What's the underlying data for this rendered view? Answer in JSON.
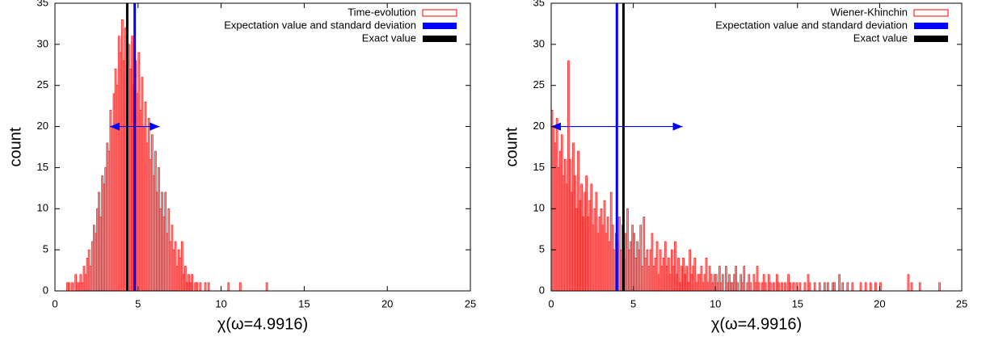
{
  "chart_data": [
    {
      "type": "histogram",
      "xlabel": "χ(ω=4.9916)",
      "ylabel": "count",
      "xlim": [
        0,
        25
      ],
      "ylim": [
        0,
        35
      ],
      "xticks": [
        0,
        5,
        10,
        15,
        20,
        25
      ],
      "yticks": [
        0,
        5,
        10,
        15,
        20,
        25,
        30,
        35
      ],
      "legend": "upper right",
      "series": [
        {
          "name": "Time-evolution",
          "color": "#ff0000",
          "bins": [
            0.5,
            0.6,
            0.7,
            0.8,
            0.9,
            1.0,
            1.1,
            1.2,
            1.3,
            1.4,
            1.5,
            1.6,
            1.7,
            1.8,
            1.9,
            2.0,
            2.1,
            2.2,
            2.3,
            2.4,
            2.5,
            2.6,
            2.7,
            2.8,
            2.9,
            3.0,
            3.1,
            3.2,
            3.3,
            3.4,
            3.5,
            3.6,
            3.7,
            3.8,
            3.9,
            4.0,
            4.1,
            4.2,
            4.3,
            4.4,
            4.5,
            4.6,
            4.7,
            4.8,
            4.9,
            5.0,
            5.1,
            5.2,
            5.3,
            5.4,
            5.5,
            5.6,
            5.7,
            5.8,
            5.9,
            6.0,
            6.1,
            6.2,
            6.3,
            6.4,
            6.5,
            6.6,
            6.7,
            6.8,
            6.9,
            7.0,
            7.1,
            7.2,
            7.3,
            7.4,
            7.5,
            7.6,
            7.7,
            7.8,
            7.9,
            8.0,
            8.1,
            8.2,
            8.3,
            8.4,
            8.5,
            8.6,
            8.7,
            8.8,
            8.9,
            9.0,
            9.1,
            9.2,
            9.3,
            9.4,
            9.5,
            9.6,
            9.7,
            9.8,
            9.9,
            10.0,
            10.1,
            10.2,
            10.3,
            10.4,
            10.5,
            10.6,
            10.7,
            10.8,
            10.9,
            11.0,
            11.1,
            11.2,
            11.3,
            11.4,
            11.5,
            11.6,
            11.7,
            11.8,
            11.9,
            12.0,
            12.1,
            12.2,
            12.3,
            12.4,
            12.5,
            12.6,
            12.7,
            12.8,
            12.9,
            13.0
          ],
          "values": [
            0,
            0,
            1,
            1,
            0,
            1,
            0,
            2,
            1,
            1,
            2,
            1,
            3,
            2,
            4,
            5,
            3,
            6,
            8,
            7,
            10,
            12,
            9,
            14,
            13,
            15,
            18,
            17,
            22,
            20,
            24,
            27,
            25,
            31,
            29,
            33,
            28,
            32,
            26,
            30,
            27,
            31,
            25,
            28,
            24,
            29,
            22,
            26,
            20,
            23,
            18,
            21,
            16,
            19,
            14,
            17,
            12,
            15,
            10,
            12,
            9,
            12,
            7,
            10,
            6,
            8,
            5,
            6,
            3,
            5,
            4,
            6,
            2,
            3,
            1,
            2,
            1,
            2,
            0,
            1,
            1,
            0,
            1,
            0,
            0,
            1,
            0,
            1,
            0,
            0,
            0,
            0,
            0,
            0,
            0,
            0,
            0,
            0,
            0,
            1,
            0,
            0,
            0,
            0,
            0,
            0,
            1,
            0,
            0,
            0,
            0,
            0,
            0,
            0,
            0,
            0,
            0,
            0,
            0,
            0,
            0,
            0,
            1,
            0,
            0
          ]
        }
      ],
      "expectation": {
        "name": "Expectation value and standard deviation",
        "color": "#0000ff",
        "value": 4.8,
        "std": 1.5,
        "arrow_at": 20
      },
      "exact": {
        "name": "Exact value",
        "color": "#000000",
        "value": 4.35
      }
    },
    {
      "type": "histogram",
      "xlabel": "χ(ω=4.9916)",
      "ylabel": "count",
      "xlim": [
        0,
        25
      ],
      "ylim": [
        0,
        35
      ],
      "xticks": [
        0,
        5,
        10,
        15,
        20,
        25
      ],
      "yticks": [
        0,
        5,
        10,
        15,
        20,
        25,
        30,
        35
      ],
      "legend": "upper right",
      "series": [
        {
          "name": "Wiener-Khinchin",
          "color": "#ff0000",
          "bins": [
            0,
            0.1,
            0.2,
            0.3,
            0.4,
            0.5,
            0.6,
            0.7,
            0.8,
            0.9,
            1,
            1.1,
            1.2,
            1.3,
            1.4,
            1.5,
            1.6,
            1.7,
            1.8,
            1.9,
            2,
            2.1,
            2.2,
            2.3,
            2.4,
            2.5,
            2.6,
            2.7,
            2.8,
            2.9,
            3,
            3.1,
            3.2,
            3.3,
            3.4,
            3.5,
            3.6,
            3.7,
            3.8,
            3.9,
            4,
            4.1,
            4.2,
            4.3,
            4.4,
            4.5,
            4.6,
            4.7,
            4.8,
            4.9,
            5,
            5.1,
            5.2,
            5.3,
            5.4,
            5.5,
            5.6,
            5.7,
            5.8,
            5.9,
            6,
            6.1,
            6.2,
            6.3,
            6.4,
            6.5,
            6.6,
            6.7,
            6.8,
            6.9,
            7,
            7.1,
            7.2,
            7.3,
            7.4,
            7.5,
            7.6,
            7.7,
            7.8,
            7.9,
            8,
            8.1,
            8.2,
            8.3,
            8.4,
            8.5,
            8.6,
            8.7,
            8.8,
            8.9,
            9,
            9.1,
            9.2,
            9.3,
            9.4,
            9.5,
            9.6,
            9.7,
            9.8,
            9.9,
            10,
            10.1,
            10.2,
            10.3,
            10.4,
            10.5,
            10.6,
            10.7,
            10.8,
            10.9,
            11,
            11.1,
            11.2,
            11.3,
            11.4,
            11.5,
            11.6,
            11.7,
            11.8,
            11.9,
            12,
            12.1,
            12.2,
            12.3,
            12.4,
            12.5,
            12.6,
            12.7,
            12.8,
            12.9,
            13,
            13.1,
            13.2,
            13.3,
            13.4,
            13.5,
            13.6,
            13.7,
            13.8,
            13.9,
            14,
            14.1,
            14.2,
            14.3,
            14.4,
            14.5,
            14.6,
            14.7,
            14.8,
            14.9,
            15,
            15.1,
            15.2,
            15.3,
            15.4,
            15.5,
            15.6,
            15.7,
            15.8,
            15.9,
            16,
            16.1,
            16.2,
            16.3,
            16.4,
            16.5,
            16.6,
            16.7,
            16.8,
            16.9,
            17,
            17.1,
            17.2,
            17.3,
            17.4,
            17.5,
            17.6,
            17.7,
            17.8,
            17.9,
            18,
            18.1,
            18.2,
            18.3,
            18.4,
            18.5,
            18.6,
            18.7,
            18.8,
            18.9,
            19,
            19.1,
            19.2,
            19.3,
            19.4,
            19.5,
            19.6,
            19.7,
            19.8,
            19.9,
            20,
            20.1,
            20.2,
            20.3,
            20.4,
            20.5,
            20.6,
            20.7,
            20.8,
            20.9,
            21,
            21.1,
            21.2,
            21.3,
            21.4,
            21.5,
            21.6,
            21.7,
            21.8,
            21.9,
            22,
            22.1,
            22.2,
            22.3,
            22.4,
            22.5,
            22.6,
            22.7,
            22.8,
            22.9,
            23,
            23.1,
            23.2,
            23.3,
            23.4,
            23.5,
            23.6,
            23.7,
            23.8,
            23.9,
            24
          ],
          "values": [
            22,
            20,
            18,
            21,
            15,
            17,
            19,
            14,
            16,
            13,
            28,
            16,
            12,
            18,
            14,
            10,
            17,
            11,
            13,
            9,
            12,
            14,
            9,
            11,
            13,
            8,
            10,
            12,
            7,
            9,
            10,
            8,
            11,
            7,
            9,
            6,
            12,
            8,
            5,
            7,
            6,
            9,
            5,
            8,
            4,
            7,
            10,
            5,
            6,
            8,
            7,
            4,
            6,
            5,
            8,
            3,
            9,
            4,
            5,
            3,
            5,
            7,
            3,
            4,
            6,
            2,
            5,
            3,
            4,
            6,
            3,
            4,
            2,
            5,
            3,
            6,
            2,
            4,
            1,
            3,
            4,
            2,
            3,
            1,
            5,
            2,
            3,
            4,
            1,
            2,
            2,
            3,
            1,
            2,
            4,
            1,
            3,
            2,
            1,
            2,
            2,
            1,
            3,
            1,
            2,
            0,
            3,
            1,
            2,
            1,
            1,
            2,
            3,
            1,
            0,
            2,
            1,
            3,
            0,
            1,
            2,
            1,
            0,
            2,
            1,
            3,
            1,
            0,
            1,
            2,
            1,
            0,
            2,
            1,
            0,
            1,
            0,
            2,
            1,
            0,
            1,
            0,
            1,
            0,
            2,
            1,
            0,
            1,
            0,
            1,
            0,
            1,
            0,
            0,
            1,
            0,
            2,
            1,
            0,
            0,
            1,
            0,
            0,
            1,
            0,
            0,
            1,
            0,
            1,
            0,
            0,
            1,
            1,
            0,
            0,
            2,
            0,
            1,
            0,
            0,
            1,
            0,
            0,
            1,
            0,
            0,
            0,
            0,
            1,
            0,
            0,
            1,
            0,
            0,
            1,
            0,
            0,
            1,
            0,
            0,
            1,
            0,
            0,
            0,
            0,
            0,
            0,
            0,
            0,
            0,
            0,
            0,
            0,
            0,
            0,
            0,
            0,
            2,
            0,
            1,
            0,
            0,
            0,
            0,
            1,
            0,
            0,
            0,
            0,
            0,
            0,
            0,
            0,
            0,
            0,
            0,
            1,
            0,
            0,
            0
          ]
        }
      ],
      "expectation": {
        "name": "Expectation value and standard deviation",
        "color": "#0000ff",
        "value": 4.0,
        "std": 4.0,
        "arrow_at": 20
      },
      "exact": {
        "name": "Exact value",
        "color": "#000000",
        "value": 4.4
      }
    }
  ]
}
